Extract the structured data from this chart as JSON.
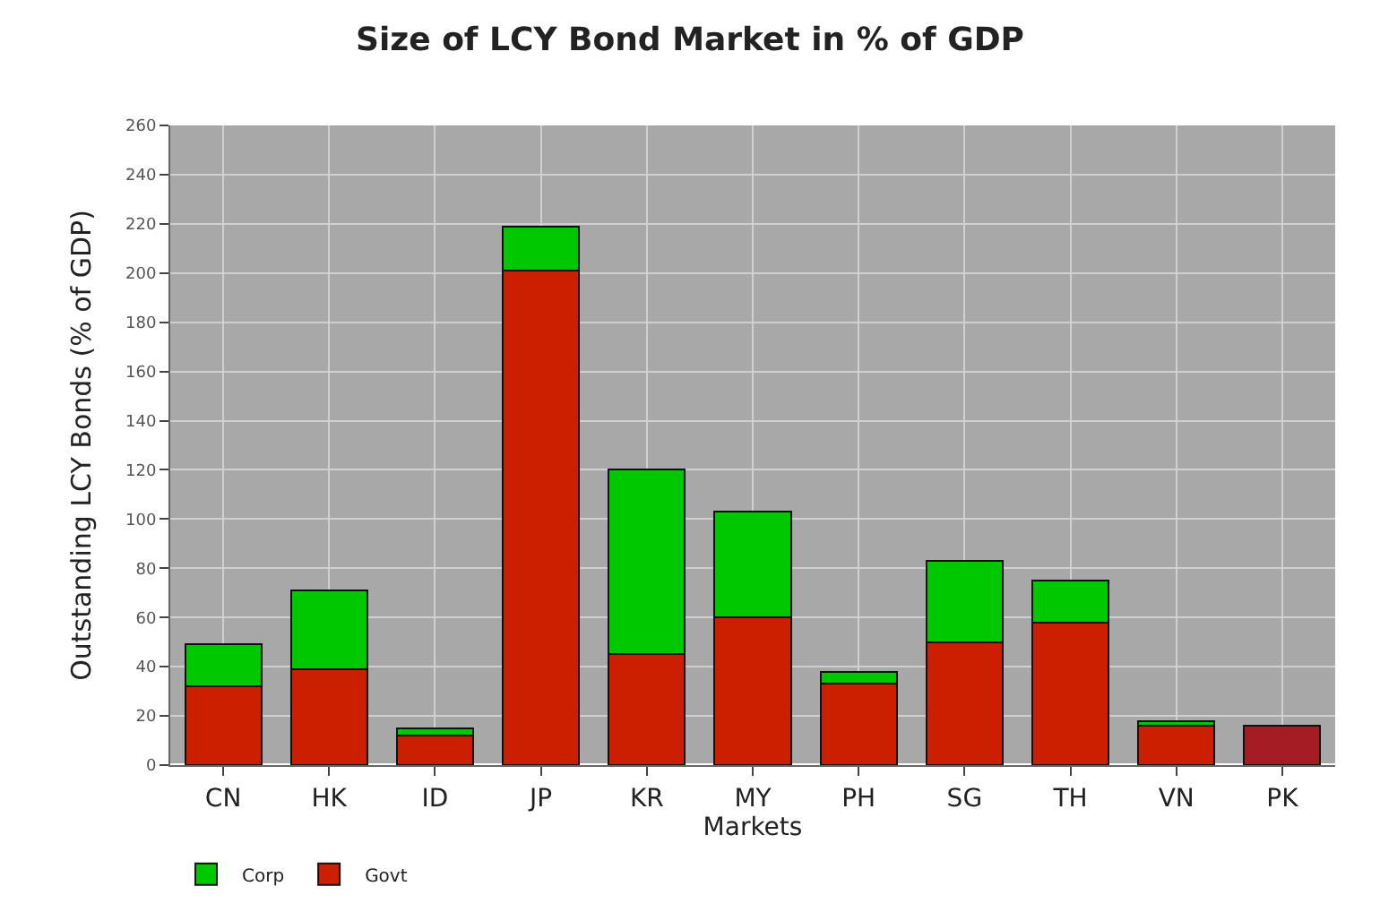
{
  "chart_data": {
    "type": "bar",
    "title": "Size of LCY Bond Market in % of GDP",
    "xlabel": "Markets",
    "ylabel": "Outstanding LCY Bonds (% of GDP)",
    "categories": [
      "CN",
      "HK",
      "ID",
      "JP",
      "KR",
      "MY",
      "PH",
      "SG",
      "TH",
      "VN",
      "PK"
    ],
    "stacked": true,
    "series": [
      {
        "name": "Govt",
        "color": "#cc1f00",
        "colors": [
          "#cc1f00",
          "#cc1f00",
          "#cc1f00",
          "#cc1f00",
          "#cc1f00",
          "#cc1f00",
          "#cc1f00",
          "#cc1f00",
          "#cc1f00",
          "#cc1f00",
          "#a51d24"
        ],
        "values": [
          32,
          39,
          12,
          201,
          45,
          60,
          33,
          50,
          58,
          16,
          16
        ]
      },
      {
        "name": "Corp",
        "color": "#00c800",
        "values": [
          17,
          32,
          3,
          18,
          75,
          43,
          5,
          33,
          17,
          2,
          null
        ]
      }
    ],
    "ylim": [
      0,
      260
    ],
    "yticks": [
      0,
      20,
      40,
      60,
      80,
      100,
      120,
      140,
      160,
      180,
      200,
      220,
      240,
      260
    ],
    "grid": true,
    "legend": "bottom left"
  }
}
